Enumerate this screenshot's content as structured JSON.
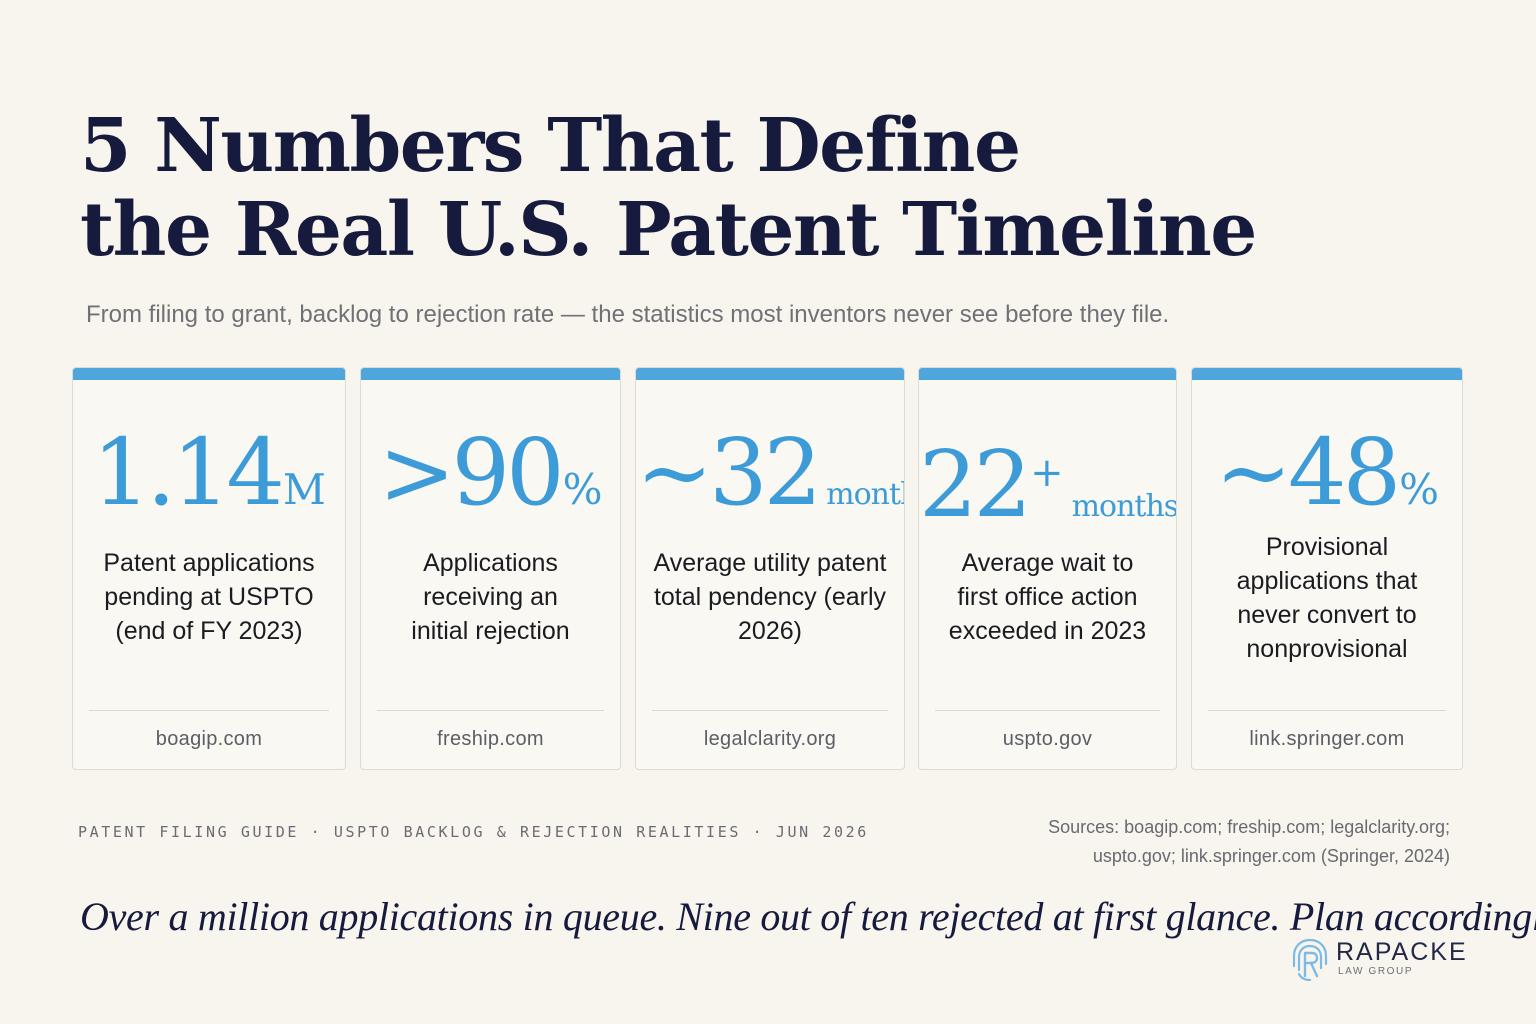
{
  "header": {
    "title_line1": "5 Numbers That Define",
    "title_line2": "the Real U.S. Patent Timeline",
    "subtitle": "From filing to grant, backlog to rejection rate — the statistics most inventors never see before they file."
  },
  "cards": [
    {
      "stat": "1.14",
      "unit": "M",
      "description": "Patent applications pending at USPTO (end of FY 2023)",
      "source": "boagip.com"
    },
    {
      "stat": ">90",
      "unit": "%",
      "description": "Applications receiving an initial rejection",
      "source": "freship.com"
    },
    {
      "stat": "~32",
      "unit": "months",
      "description": "Average utility patent total pendency (early 2026)",
      "source": "legalclarity.org"
    },
    {
      "stat": "22",
      "plus": "+",
      "unit": "months",
      "description": "Average wait to first office action exceeded in 2023",
      "source": "uspto.gov"
    },
    {
      "stat": "~48",
      "unit": "%",
      "description": "Provisional applications that never convert to nonprovisional",
      "source": "link.springer.com"
    }
  ],
  "footer": {
    "left": "PATENT FILING GUIDE · USPTO BACKLOG & REJECTION REALITIES · JUN 2026",
    "sources_line1": "Sources: boagip.com; freship.com; legalclarity.org;",
    "sources_line2": "uspto.gov; link.springer.com (Springer, 2024)",
    "tagline": "Over a million applications in queue. Nine out of ten rejected at first glance. Plan accordingly."
  },
  "logo": {
    "name": "RAPACKE",
    "sub": "LAW GROUP",
    "icon": "fingerprint-r-icon"
  },
  "colors": {
    "accent": "#4ea6dc",
    "stat": "#3d9cd7",
    "title": "#161a3d",
    "background": "#f8f5ee"
  }
}
